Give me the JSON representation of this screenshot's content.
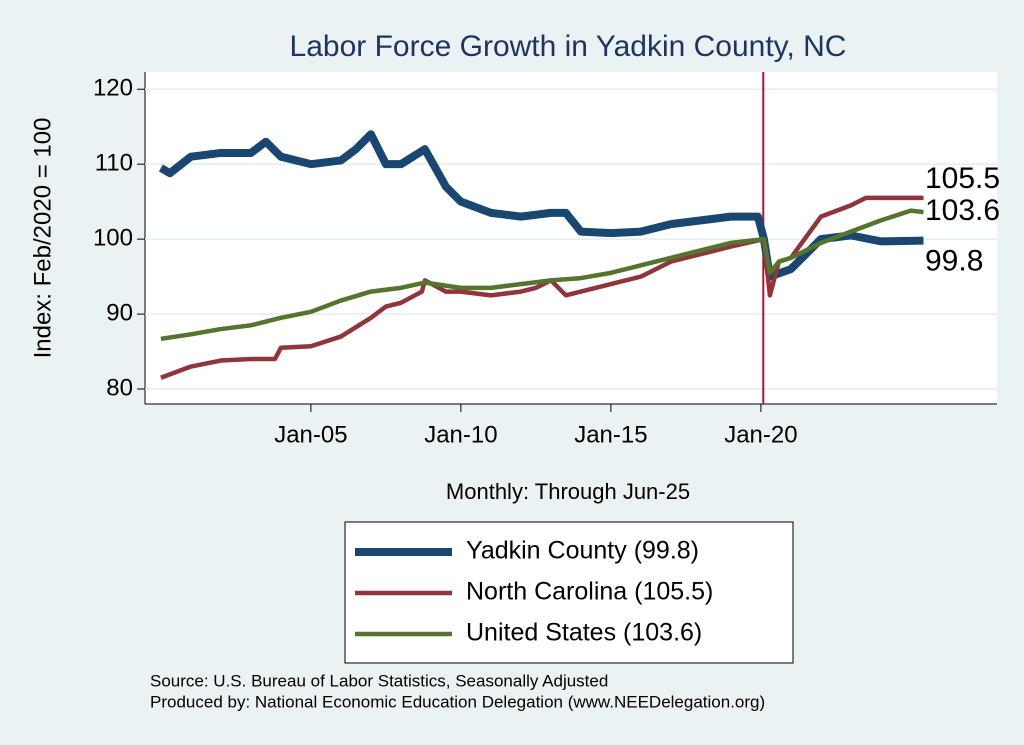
{
  "chart_data": {
    "type": "line",
    "title": "Labor Force Growth in Yadkin  County, NC",
    "y_label": "Index: Feb/2020 = 100",
    "x_label": "Monthly: Through Jun-25",
    "source": "Source: U.S. Bureau of Labor Statistics, Seasonally Adjusted",
    "credit": "Produced by: National Economic Education Delegation (www.NEEDelegation.org)",
    "xlim": [
      1999.47,
      2027.87
    ],
    "ylim": [
      78,
      122.3
    ],
    "xticks": [
      {
        "value": 2005,
        "label": "Jan-05"
      },
      {
        "value": 2010,
        "label": "Jan-10"
      },
      {
        "value": 2015,
        "label": "Jan-15"
      },
      {
        "value": 2020,
        "label": "Jan-20"
      }
    ],
    "yticks": [
      80,
      90,
      100,
      110,
      120
    ],
    "grid": true,
    "vline": 2020.08,
    "vline_color": "#b0103a",
    "series": [
      {
        "name": "Yadkin  County (99.8)",
        "color": "#1a476f",
        "end_label": "99.8",
        "x": [
          2000,
          2000.3,
          2001,
          2002,
          2003,
          2003.5,
          2004,
          2005,
          2006,
          2006.5,
          2007,
          2007.5,
          2008,
          2008.8,
          2009.5,
          2010,
          2011,
          2012,
          2013,
          2013.5,
          2014,
          2015,
          2016,
          2017,
          2018,
          2019,
          2019.9,
          2020.1,
          2020.3,
          2021,
          2021.5,
          2022,
          2023,
          2024,
          2025.42
        ],
        "values": [
          109.5,
          108.8,
          111,
          111.5,
          111.5,
          113,
          111,
          110,
          110.5,
          112,
          114,
          110,
          110,
          112,
          107,
          105,
          103.5,
          103,
          103.5,
          103.5,
          101,
          100.8,
          101,
          102,
          102.5,
          103,
          103,
          100,
          95,
          96,
          98,
          100,
          100.5,
          99.7,
          99.8
        ]
      },
      {
        "name": "North Carolina (105.5)",
        "color": "#90353b",
        "end_label": "105.5",
        "x": [
          2000,
          2001,
          2002,
          2003,
          2003.8,
          2004,
          2005,
          2006,
          2007,
          2007.5,
          2008,
          2008.7,
          2008.8,
          2009.5,
          2010,
          2011,
          2012,
          2012.5,
          2013,
          2013.5,
          2014,
          2015,
          2016,
          2017,
          2018,
          2019,
          2020.1,
          2020.3,
          2020.6,
          2021,
          2022,
          2023,
          2023.5,
          2024,
          2025.42
        ],
        "values": [
          81.5,
          83,
          83.8,
          84,
          84,
          85.5,
          85.7,
          87,
          89.5,
          91,
          91.5,
          93,
          94.5,
          93,
          93,
          92.5,
          93,
          93.5,
          94.5,
          92.5,
          93,
          94,
          95,
          97,
          98,
          99,
          100,
          92.5,
          97,
          97.5,
          103,
          104.5,
          105.5,
          105.5,
          105.5
        ]
      },
      {
        "name": "United States (103.6)",
        "color": "#55752f",
        "end_label": "103.6",
        "x": [
          2000,
          2001,
          2002,
          2003,
          2004,
          2005,
          2006,
          2007,
          2008,
          2008.8,
          2010,
          2011,
          2012,
          2013,
          2014,
          2015,
          2016,
          2017,
          2018,
          2019,
          2020.1,
          2020.3,
          2020.6,
          2021,
          2022,
          2023,
          2024,
          2025,
          2025.42
        ],
        "values": [
          86.7,
          87.3,
          88,
          88.5,
          89.5,
          90.3,
          91.8,
          93,
          93.5,
          94.2,
          93.5,
          93.5,
          94,
          94.5,
          94.8,
          95.5,
          96.5,
          97.5,
          98.5,
          99.5,
          100,
          95.5,
          97,
          97.5,
          99.5,
          101,
          102.5,
          103.8,
          103.6
        ]
      }
    ]
  }
}
